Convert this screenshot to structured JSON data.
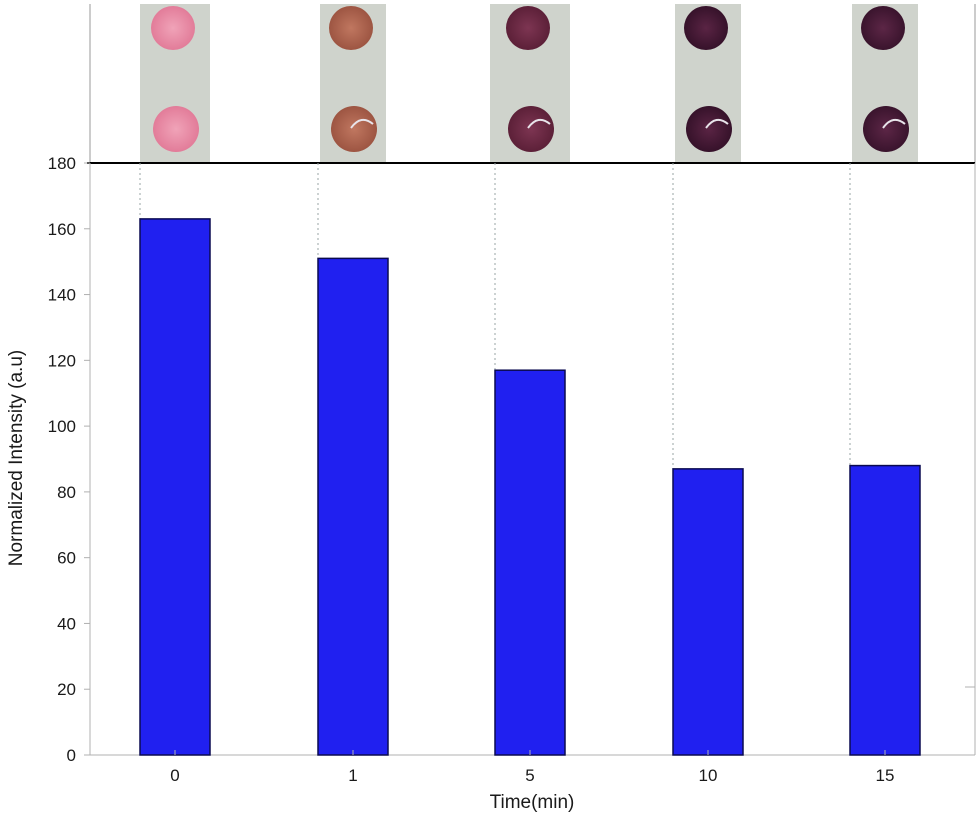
{
  "chart_data": {
    "type": "bar",
    "xlabel": "Time(min)",
    "ylabel": "Normalized Intensity (a.u)",
    "categories": [
      "0",
      "1",
      "5",
      "10",
      "15"
    ],
    "values": [
      163,
      151,
      117,
      87,
      88
    ],
    "ylim": [
      0,
      180
    ],
    "yticks": [
      "0",
      "20",
      "40",
      "60",
      "80",
      "100",
      "120",
      "140",
      "160",
      "180"
    ],
    "bar_color": "#2020f0",
    "grid": false,
    "legend": "none",
    "inset_photos": {
      "description_key": "colorimetric-spot-photos",
      "spot_colors": [
        "#e88ea8",
        "#b5644f",
        "#6e2a45",
        "#4a1a38",
        "#4c1c3a"
      ],
      "strip_background": "#cfd3cc"
    }
  }
}
